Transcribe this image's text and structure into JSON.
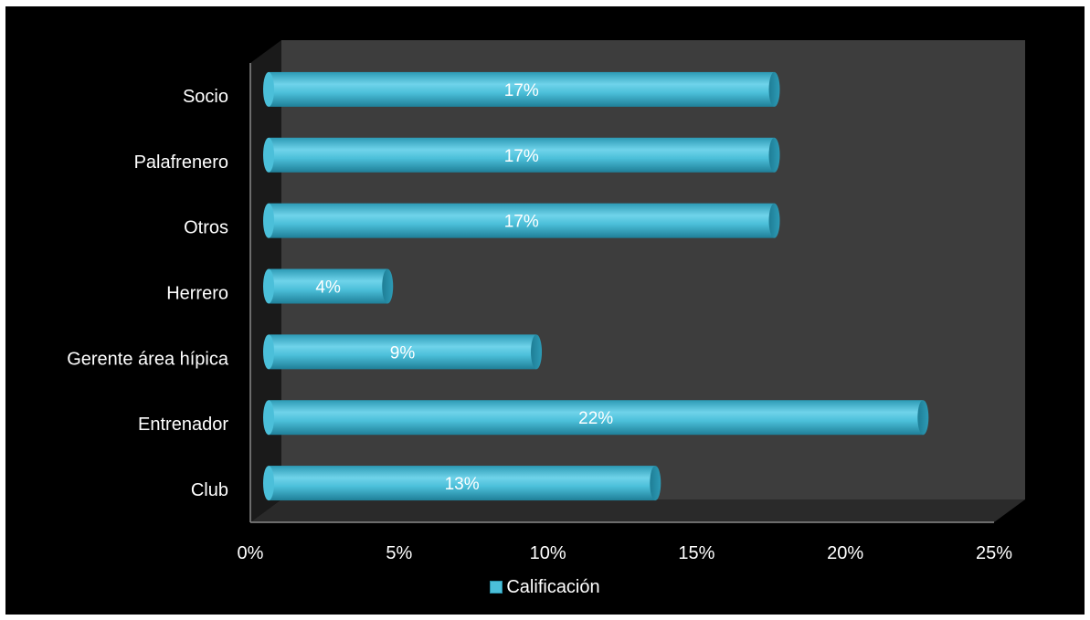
{
  "chart_data": {
    "type": "bar",
    "orientation": "horizontal",
    "style": "3d-cylinder",
    "categories": [
      "Club",
      "Entrenador",
      "Gerente área hípica",
      "Herrero",
      "Otros",
      "Palafrenero",
      "Socio"
    ],
    "series": [
      {
        "name": "Calificación",
        "values": [
          0.13,
          0.22,
          0.09,
          0.04,
          0.17,
          0.17,
          0.17
        ],
        "labels": [
          "13%",
          "22%",
          "9%",
          "4%",
          "17%",
          "17%",
          "17%"
        ],
        "color": "#4bbfd9"
      }
    ],
    "xlim": [
      0,
      0.25
    ],
    "xticks": [
      0,
      0.05,
      0.1,
      0.15,
      0.2,
      0.25
    ],
    "xtick_labels": [
      "0%",
      "5%",
      "10%",
      "15%",
      "20%",
      "25%"
    ],
    "legend": {
      "position": "bottom",
      "label": "Calificación"
    },
    "background_color": "#000000",
    "wall_color": "#3d3d3d",
    "grid": false
  }
}
